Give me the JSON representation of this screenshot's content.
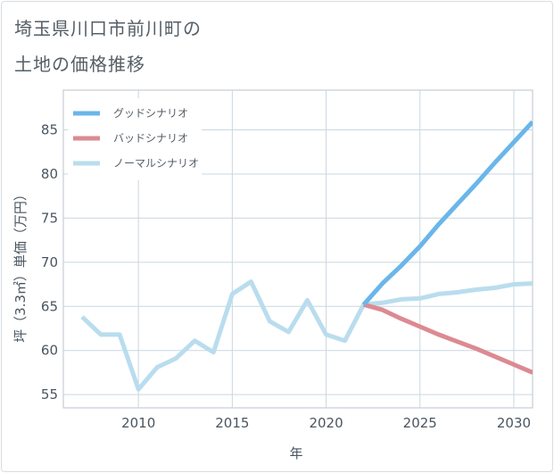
{
  "title": {
    "line1": "埼玉県川口市前川町の",
    "line2": "土地の価格推移"
  },
  "chart_data": {
    "type": "line",
    "xlabel": "年",
    "ylabel": "坪（3.3㎡）単価（万円）",
    "xlim": [
      2006,
      2031
    ],
    "ylim": [
      53.5,
      89.5
    ],
    "xticks": [
      2010,
      2015,
      2020,
      2025,
      2030
    ],
    "yticks": [
      55,
      60,
      65,
      70,
      75,
      80,
      85
    ],
    "grid": true,
    "legend_position": "top-left",
    "series": [
      {
        "name": "グッドシナリオ",
        "color": "#6ab6ea",
        "x": [
          2022,
          2023,
          2024,
          2025,
          2026,
          2027,
          2028,
          2029,
          2030,
          2031
        ],
        "y": [
          65.2,
          67.6,
          69.6,
          71.8,
          74.3,
          76.6,
          78.9,
          81.3,
          83.6,
          85.9
        ]
      },
      {
        "name": "バッドシナリオ",
        "color": "#dc8a92",
        "x": [
          2022,
          2023,
          2024,
          2025,
          2026,
          2027,
          2028,
          2029,
          2030,
          2031
        ],
        "y": [
          65.2,
          64.6,
          63.6,
          62.7,
          61.8,
          61.0,
          60.2,
          59.3,
          58.4,
          57.5
        ]
      },
      {
        "name": "ノーマルシナリオ",
        "color": "#b9ddee",
        "x": [
          2007,
          2008,
          2009,
          2010,
          2011,
          2012,
          2013,
          2014,
          2015,
          2016,
          2017,
          2018,
          2019,
          2020,
          2021,
          2022,
          2023,
          2024,
          2025,
          2026,
          2027,
          2028,
          2029,
          2030,
          2031
        ],
        "y": [
          63.8,
          61.8,
          61.8,
          55.6,
          58.1,
          59.1,
          61.1,
          59.8,
          66.4,
          67.8,
          63.3,
          62.1,
          65.7,
          61.8,
          61.1,
          65.2,
          65.4,
          65.8,
          65.9,
          66.4,
          66.6,
          66.9,
          67.1,
          67.5,
          67.6
        ]
      }
    ]
  }
}
